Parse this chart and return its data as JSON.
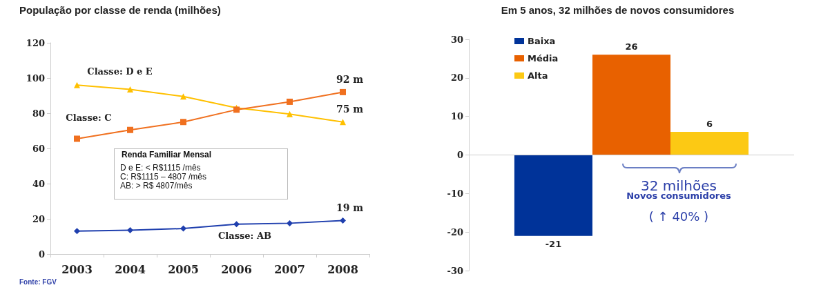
{
  "chart_data": [
    {
      "type": "line",
      "title": "População por classe de renda (milhões)",
      "categories": [
        "2003",
        "2004",
        "2005",
        "2006",
        "2007",
        "2008"
      ],
      "series": [
        {
          "name": "Classe: D e E",
          "color": "#ffc000",
          "marker": "triangle",
          "values": [
            96,
            93.5,
            89.5,
            83,
            79.5,
            75
          ],
          "value_labels": [
            null,
            null,
            null,
            null,
            null,
            "75 m"
          ]
        },
        {
          "name": "Classe: C",
          "color": "#f0701f",
          "marker": "square",
          "values": [
            65.5,
            70.5,
            75,
            82,
            86.5,
            92
          ],
          "value_labels": [
            null,
            null,
            null,
            null,
            null,
            "92 m"
          ]
        },
        {
          "name": "Classe: AB",
          "color": "#1f3fae",
          "marker": "diamond",
          "values": [
            13,
            13.5,
            14.5,
            17,
            17.5,
            19
          ],
          "value_labels": [
            null,
            null,
            null,
            null,
            null,
            "19 m"
          ]
        }
      ],
      "ylim": [
        0,
        120
      ],
      "yticks": [
        0,
        20,
        40,
        60,
        80,
        100,
        120
      ],
      "grid": false,
      "legend": false,
      "annotations": [
        "Renda Familiar Mensal",
        "D e E: < R$1115 /mês",
        "C: R$1115 – 4807 /mês",
        "AB: > R$ 4807/mês",
        "Fonte:  FGV"
      ]
    },
    {
      "type": "bar",
      "title": "Em 5 anos, 32 milhões de novos consumidores",
      "categories": [
        null
      ],
      "series": [
        {
          "name": "Baixa",
          "color": "#003399",
          "values": [
            -21
          ]
        },
        {
          "name": "Média",
          "color": "#e86100",
          "values": [
            26
          ]
        },
        {
          "name": "Alta",
          "color": "#fcc914",
          "values": [
            6
          ]
        }
      ],
      "ylim": [
        -30,
        30
      ],
      "yticks": [
        -30,
        -20,
        -10,
        0,
        10,
        20,
        30
      ],
      "grid": false,
      "legend": "top left",
      "data_labels": true,
      "ref_lines": [
        {
          "axis": "y",
          "value": 0,
          "color": "#cccccc"
        }
      ],
      "annotations": [
        "32 milhões",
        "Novos consumidores",
        "( ↑ 40% )"
      ]
    }
  ]
}
